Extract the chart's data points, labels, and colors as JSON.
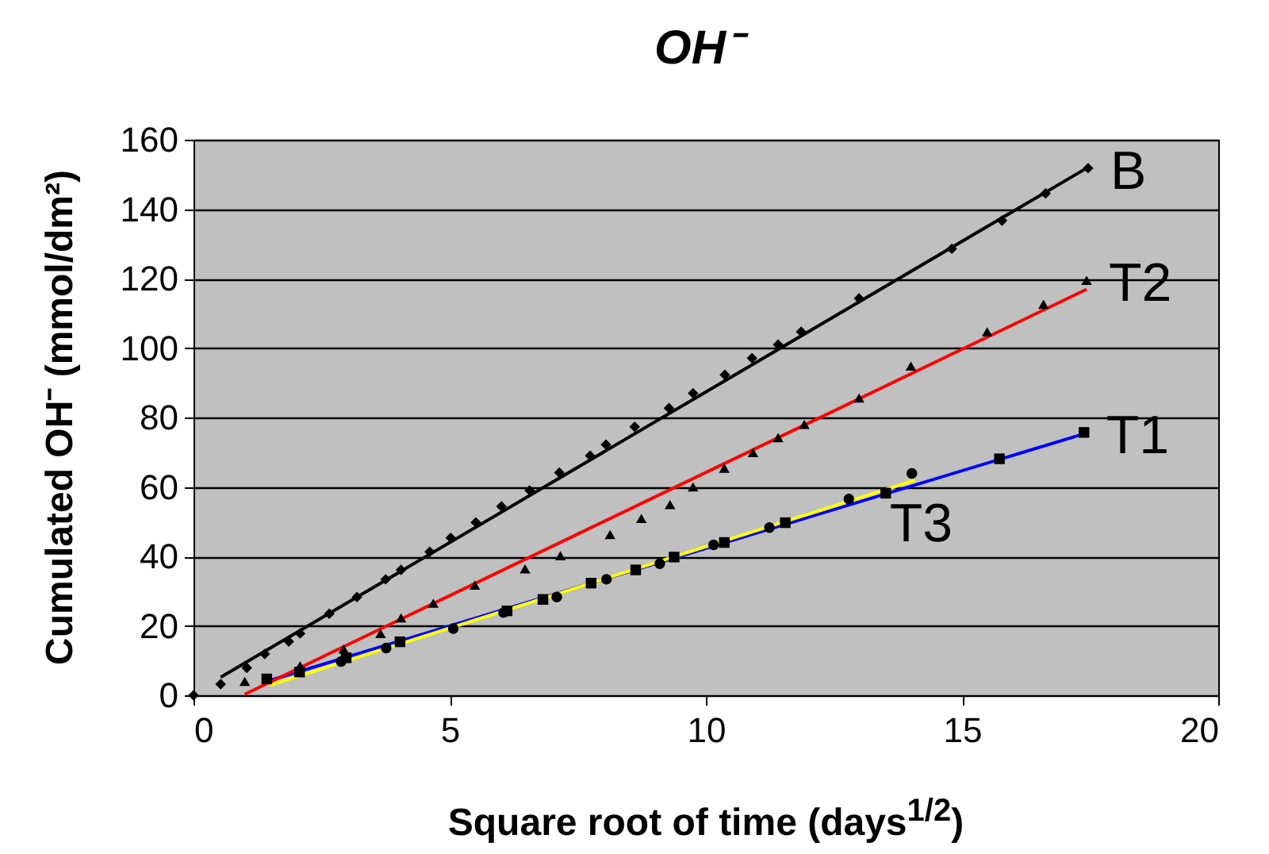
{
  "chart_data": {
    "type": "scatter",
    "title": "OH⁻",
    "xlabel": "Square root of time (days$^{1/2}$)",
    "ylabel": "Cumulated OH⁻ (mmol/dm²)",
    "xlim": [
      0,
      20
    ],
    "xticks": [
      0,
      5,
      10,
      15,
      20
    ],
    "ylim": [
      0,
      160
    ],
    "yticks": [
      0,
      20,
      40,
      60,
      80,
      100,
      120,
      140,
      160
    ],
    "grid": "y",
    "series": [
      {
        "name": "B",
        "marker": "diamond",
        "color": "#000000",
        "x": [
          0,
          0.53,
          1.04,
          1.39,
          1.86,
          2.08,
          2.65,
          3.19,
          3.75,
          4.05,
          4.61,
          5.02,
          5.51,
          6.01,
          6.56,
          7.14,
          7.74,
          8.05,
          8.61,
          9.28,
          9.75,
          10.37,
          10.9,
          11.41,
          11.86,
          12.99,
          14.8,
          15.78,
          16.63,
          17.46
        ],
        "values": [
          0,
          3.2,
          7.9,
          11.9,
          15.5,
          17.8,
          23.5,
          28.3,
          33.4,
          36.1,
          41.3,
          45.3,
          49.8,
          54.4,
          59,
          64.1,
          69,
          72.2,
          77.3,
          82.7,
          87,
          92.3,
          97.1,
          101,
          104.7,
          114.3,
          128.6,
          136.7,
          144.5,
          151.8
        ]
      },
      {
        "name": "T2",
        "marker": "triangle",
        "color": "#000000",
        "x": [
          1.0,
          2.08,
          2.93,
          3.65,
          4.05,
          4.68,
          5.49,
          6.47,
          7.16,
          8.13,
          8.74,
          9.3,
          9.75,
          10.36,
          10.92,
          11.41,
          11.92,
          12.99,
          14.0,
          15.49,
          16.59,
          17.43
        ],
        "values": [
          4.0,
          8.5,
          13.3,
          17.8,
          22.3,
          26.5,
          31.7,
          36.4,
          40.2,
          46.3,
          50.9,
          54.9,
          60,
          65.4,
          69.9,
          74.2,
          78,
          85.6,
          94.8,
          104.7,
          112.6,
          119.5
        ]
      },
      {
        "name": "T1",
        "marker": "square",
        "color": "#000000",
        "x": [
          1.43,
          2.07,
          2.98,
          4.03,
          6.12,
          6.82,
          7.76,
          8.63,
          9.38,
          10.36,
          11.55,
          13.51,
          15.73,
          17.38
        ],
        "values": [
          4.7,
          6.7,
          10.8,
          15.4,
          24.3,
          27.6,
          32.3,
          36.1,
          39.8,
          44,
          49.7,
          58.2,
          68.1,
          75.7
        ]
      },
      {
        "name": "T3",
        "marker": "circle",
        "color": "#000000",
        "x": [
          2.88,
          3.76,
          5.07,
          6.05,
          7.09,
          8.06,
          9.1,
          10.15,
          11.24,
          12.79,
          14.02
        ],
        "values": [
          9.7,
          13.6,
          19.2,
          23.8,
          28.3,
          33.4,
          37.9,
          43.3,
          48.3,
          56.5,
          63.9
        ]
      },
      {
        "type": "line",
        "color": "#000000",
        "x": [
          0.53,
          17.43
        ],
        "values": [
          5.2,
          151.8
        ]
      },
      {
        "type": "line",
        "color": "#ff0000",
        "x": [
          1.0,
          17.43
        ],
        "values": [
          0.3,
          116.9
        ]
      },
      {
        "type": "line",
        "color": "#ffff00",
        "x": [
          1.49,
          14.08
        ],
        "values": [
          2.9,
          61.9
        ]
      },
      {
        "type": "line",
        "color": "#0000ff",
        "x": [
          1.43,
          17.38
        ],
        "values": [
          4.0,
          75.3
        ]
      }
    ]
  }
}
